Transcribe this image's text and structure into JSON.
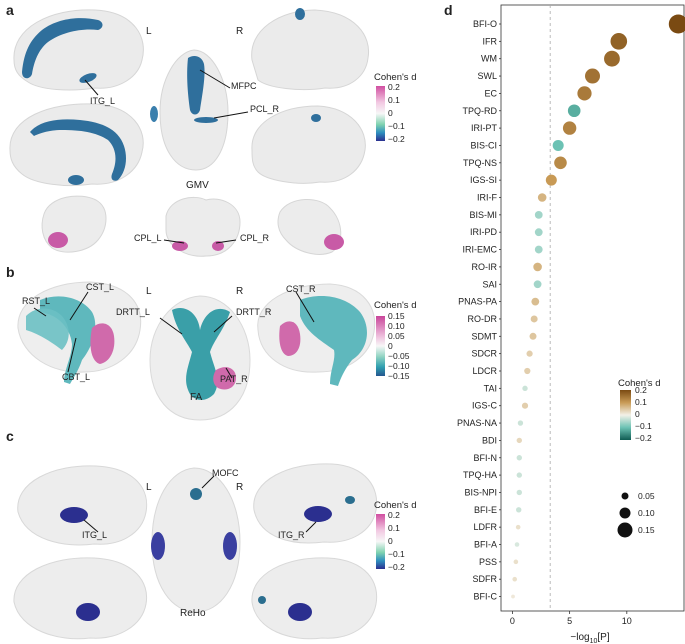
{
  "panel_letters": {
    "a": "a",
    "b": "b",
    "c": "c",
    "d": "d"
  },
  "panel_a": {
    "left": "L",
    "right": "R",
    "center_label": "GMV",
    "labels": {
      "itg_l": "ITG_L",
      "mfpc": "MFPC",
      "pcl_r": "PCL_R",
      "cpl_l": "CPL_L",
      "cpl_r": "CPL_R"
    },
    "legend": {
      "title": "Cohen's d",
      "ticks": [
        "0.2",
        "0.1",
        "0",
        "−0.1",
        "−0.2"
      ]
    }
  },
  "panel_b": {
    "left": "L",
    "right": "R",
    "center_label": "FA",
    "labels": {
      "rst_l": "RST_L",
      "cst_l": "CST_L",
      "cbt_l": "CBT_L",
      "drtt_l": "DRTT_L",
      "drtt_r": "DRTT_R",
      "cst_r": "CST_R",
      "pat_r": "PAT_R"
    },
    "legend": {
      "title": "Cohen's d",
      "ticks": [
        "0.15",
        "0.10",
        "0.05",
        "0",
        "−0.05",
        "−0.10",
        "−0.15"
      ]
    }
  },
  "panel_c": {
    "left": "L",
    "right": "R",
    "center_label": "ReHo",
    "labels": {
      "itg_l": "ITG_L",
      "mofc": "MOFC",
      "itg_r": "ITG_R"
    },
    "legend": {
      "title": "Cohen's d",
      "ticks": [
        "0.2",
        "0.1",
        "0",
        "−0.1",
        "−0.2"
      ]
    }
  },
  "colors": {
    "brain": "#e9e9e9",
    "brain_stroke": "#d4d4d4",
    "blue_dark": "#2c6e99",
    "blue_light": "#3a8fbf",
    "navy": "#2b2f8f",
    "pink": "#c85aa6",
    "teal": "#46a9ad",
    "tract_teal": "#5fb8bd"
  },
  "chart_data": {
    "type": "scatter",
    "title": "",
    "xlabel_main": "−log",
    "xlabel_sub": "10",
    "xlabel_arg": "[P]",
    "xticks": [
      "0",
      "5",
      "10"
    ],
    "xlim": [
      -1,
      15
    ],
    "threshold": 3.3,
    "categories": [
      "BFI-O",
      "IFR",
      "WM",
      "SWL",
      "EC",
      "TPQ-RD",
      "IRI-PT",
      "BIS-CI",
      "TPQ-NS",
      "IGS-SI",
      "IRI-F",
      "BIS-MI",
      "IRI-PD",
      "IRI-EMC",
      "RO-IR",
      "SAI",
      "PNAS-PA",
      "RO-DR",
      "SDMT",
      "SDCR",
      "LDCR",
      "TAI",
      "IGS-C",
      "PNAS-NA",
      "BDI",
      "BFI-N",
      "TPQ-HA",
      "BIS-NPI",
      "BFI-E",
      "LDFR",
      "BFI-A",
      "PSS",
      "SDFR",
      "BFI-C"
    ],
    "x": [
      14.5,
      9.3,
      8.7,
      7.0,
      6.3,
      5.4,
      5.0,
      4.0,
      4.2,
      3.4,
      2.6,
      2.3,
      2.3,
      2.3,
      2.2,
      2.2,
      2.0,
      1.9,
      1.8,
      1.5,
      1.3,
      1.1,
      1.1,
      0.7,
      0.6,
      0.6,
      0.6,
      0.6,
      0.55,
      0.5,
      0.4,
      0.3,
      0.2,
      0.05
    ],
    "cohens_d": [
      0.2,
      0.17,
      0.16,
      0.15,
      0.14,
      -0.12,
      0.13,
      -0.1,
      0.12,
      0.1,
      0.07,
      -0.06,
      -0.06,
      -0.06,
      0.07,
      -0.06,
      0.06,
      0.05,
      0.05,
      0.04,
      0.04,
      -0.03,
      0.04,
      -0.03,
      0.03,
      -0.03,
      -0.03,
      -0.03,
      -0.03,
      0.02,
      -0.02,
      0.02,
      0.02,
      0.01
    ],
    "legend": {
      "color_title": "Cohen's d",
      "color_ticks": [
        "0.2",
        "0.1",
        "0",
        "−0.1",
        "−0.2"
      ],
      "size_ticks": [
        "0.05",
        "0.10",
        "0.15"
      ],
      "size_values": [
        0.05,
        0.1,
        0.15
      ]
    }
  }
}
